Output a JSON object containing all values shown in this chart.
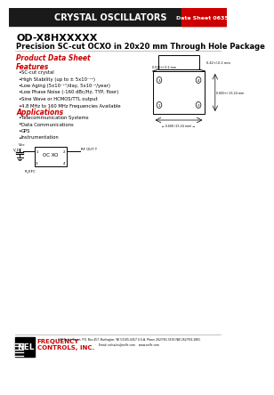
{
  "title_bar_text": "CRYSTAL OSCILLATORS",
  "datasheet_text": "Data Sheet 0635G",
  "product_title1": "OD-X8HXXXXX",
  "product_title2": "Precision SC-cut OCXO in 20x20 mm Through Hole Package",
  "section1": "Product Data Sheet",
  "section2": "Features",
  "features": [
    "SC-cut crystal",
    "High Stability (up to ± 5x10⁻¹²)",
    "Low Aging (5x10⁻¹°/day, 5x10⁻⁸/year)",
    "Low Phase Noise (-160 dBc/Hz, TYP, floor)",
    "Sine Wave or HCMOS/TTL output",
    "4.8 MHz to 160 MHz Frequencies Available"
  ],
  "section3": "Applications",
  "applications": [
    "Telecommunication Systems",
    "Data Communications",
    "GPS",
    "Instrumentation"
  ],
  "nel_text2": "FREQUENCY",
  "nel_text3": "CONTROLS, INC.",
  "address": "597 Beloit Street, P.O. Box 457, Burlington, WI 53105-0457 U.S.A. Phone 262/763-3591 FAX 262/763-2881",
  "email": "Email: nelsales@nelfc.com    www.nelfc.com",
  "header_bg": "#1a1a1a",
  "header_text_color": "#ffffff",
  "datasheet_bg": "#cc0000",
  "red_color": "#cc0000",
  "title1_color": "#000000",
  "title2_color": "#000000",
  "section_color": "#cc0000",
  "body_color": "#000000",
  "bg_color": "#ffffff"
}
